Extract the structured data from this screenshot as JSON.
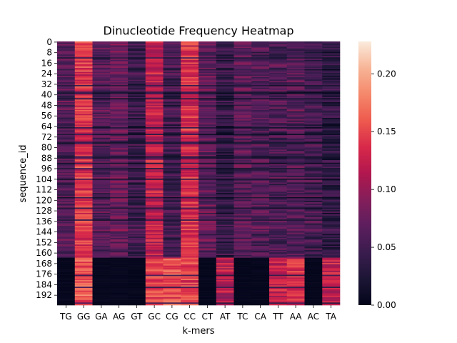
{
  "chart_data": {
    "type": "heatmap",
    "title": "Dinucleotide Frequency Heatmap",
    "xlabel": "k-mers",
    "ylabel": "sequence_id",
    "x_categories": [
      "TG",
      "GG",
      "GA",
      "AG",
      "GT",
      "GC",
      "CG",
      "CC",
      "CT",
      "AT",
      "TC",
      "CA",
      "TT",
      "AA",
      "AC",
      "TA"
    ],
    "y_tick_labels": [
      "0",
      "8",
      "16",
      "24",
      "32",
      "40",
      "48",
      "56",
      "64",
      "72",
      "80",
      "88",
      "96",
      "104",
      "112",
      "120",
      "128",
      "136",
      "144",
      "152",
      "160",
      "168",
      "176",
      "184",
      "192"
    ],
    "n_rows": 200,
    "vmin": 0.0,
    "vmax": 0.228,
    "colorbar_ticks": [
      "0.00",
      "0.05",
      "0.10",
      "0.15",
      "0.20"
    ],
    "colormap": "rocket",
    "grid": false,
    "blocks": [
      {
        "rows": "0-163",
        "column_mean_frequency": {
          "TG": 0.065,
          "GG": 0.14,
          "GA": 0.06,
          "AG": 0.075,
          "GT": 0.045,
          "GC": 0.12,
          "CG": 0.05,
          "CC": 0.135,
          "CT": 0.07,
          "AT": 0.04,
          "TC": 0.065,
          "CA": 0.06,
          "TT": 0.055,
          "AA": 0.06,
          "AC": 0.05,
          "TA": 0.035
        }
      },
      {
        "rows": "164-199",
        "column_mean_frequency": {
          "TG": 0.003,
          "GG": 0.155,
          "GA": 0.004,
          "AG": 0.004,
          "GT": 0.003,
          "GC": 0.15,
          "CG": 0.155,
          "CC": 0.15,
          "CT": 0.003,
          "AT": 0.115,
          "TC": 0.003,
          "CA": 0.003,
          "TT": 0.125,
          "AA": 0.135,
          "AC": 0.003,
          "TA": 0.12
        }
      }
    ]
  }
}
